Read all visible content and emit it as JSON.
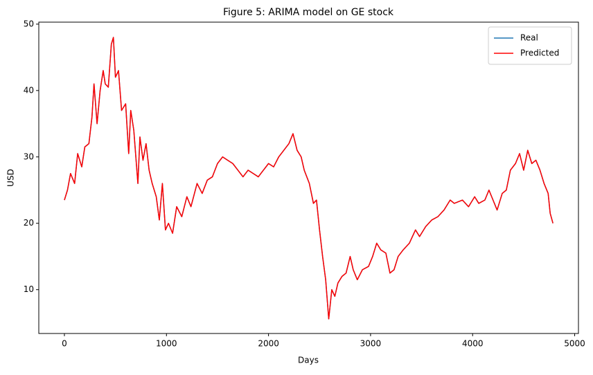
{
  "chart_data": {
    "type": "line",
    "title": "Figure 5: ARIMA model on GE stock",
    "x_label": "Days",
    "y_label": "USD",
    "x": [
      0,
      30,
      60,
      100,
      130,
      170,
      200,
      240,
      270,
      290,
      320,
      350,
      380,
      400,
      430,
      460,
      480,
      500,
      530,
      560,
      600,
      630,
      650,
      680,
      700,
      720,
      740,
      770,
      800,
      830,
      860,
      900,
      930,
      960,
      990,
      1020,
      1060,
      1100,
      1150,
      1200,
      1240,
      1300,
      1350,
      1400,
      1450,
      1500,
      1550,
      1600,
      1650,
      1700,
      1750,
      1800,
      1850,
      1900,
      1950,
      2000,
      2050,
      2100,
      2150,
      2200,
      2240,
      2280,
      2320,
      2350,
      2400,
      2440,
      2470,
      2500,
      2530,
      2560,
      2590,
      2620,
      2650,
      2680,
      2720,
      2760,
      2800,
      2830,
      2870,
      2920,
      2980,
      3020,
      3060,
      3100,
      3150,
      3190,
      3230,
      3270,
      3320,
      3380,
      3440,
      3480,
      3540,
      3600,
      3660,
      3720,
      3780,
      3820,
      3900,
      3960,
      4020,
      4060,
      4120,
      4160,
      4200,
      4240,
      4290,
      4330,
      4370,
      4420,
      4460,
      4500,
      4540,
      4580,
      4620,
      4660,
      4700,
      4740,
      4760,
      4787
    ],
    "series": [
      {
        "name": "Real",
        "color": "#1f77b4",
        "values": [
          23.5,
          25,
          27.5,
          26,
          30.5,
          28.5,
          31.5,
          32,
          36,
          41,
          35,
          40,
          43,
          41,
          40.5,
          47,
          48,
          42,
          43,
          37,
          38,
          30.5,
          37,
          34,
          30,
          26,
          33,
          29.5,
          32,
          28,
          26,
          24,
          20.5,
          26,
          19,
          20,
          18.5,
          22.5,
          21,
          24,
          22.5,
          26,
          24.5,
          26.5,
          27,
          29,
          30,
          29.5,
          29,
          28,
          27,
          28,
          27.5,
          27,
          28,
          29,
          28.5,
          30,
          31,
          32,
          33.5,
          31,
          30,
          28,
          26,
          23,
          23.5,
          19,
          15,
          11.5,
          5.6,
          10,
          9,
          11,
          12,
          12.5,
          15,
          13,
          11.5,
          13,
          13.5,
          15,
          17,
          16,
          15.5,
          12.5,
          13,
          15,
          16,
          17,
          19,
          18,
          19.5,
          20.5,
          21,
          22,
          23.5,
          23,
          23.5,
          22.5,
          24,
          23,
          23.5,
          25,
          23.5,
          22,
          24.5,
          25,
          28,
          29,
          30.5,
          28,
          31,
          29,
          29.5,
          28,
          26,
          24.5,
          21.5,
          20
        ]
      },
      {
        "name": "Predicted",
        "color": "#ff0000",
        "values": [
          23.5,
          25,
          27.5,
          26,
          30.5,
          28.5,
          31.5,
          32,
          36,
          41,
          35,
          40,
          43,
          41,
          40.5,
          47,
          48,
          42,
          43,
          37,
          38,
          30.5,
          37,
          34,
          30,
          26,
          33,
          29.5,
          32,
          28,
          26,
          24,
          20.5,
          26,
          19,
          20,
          18.5,
          22.5,
          21,
          24,
          22.5,
          26,
          24.5,
          26.5,
          27,
          29,
          30,
          29.5,
          29,
          28,
          27,
          28,
          27.5,
          27,
          28,
          29,
          28.5,
          30,
          31,
          32,
          33.5,
          31,
          30,
          28,
          26,
          23,
          23.5,
          19,
          15,
          11.5,
          5.6,
          10,
          9,
          11,
          12,
          12.5,
          15,
          13,
          11.5,
          13,
          13.5,
          15,
          17,
          16,
          15.5,
          12.5,
          13,
          15,
          16,
          17,
          19,
          18,
          19.5,
          20.5,
          21,
          22,
          23.5,
          23,
          23.5,
          22.5,
          24,
          23,
          23.5,
          25,
          23.5,
          22,
          24.5,
          25,
          28,
          29,
          30.5,
          28,
          31,
          29,
          29.5,
          28,
          26,
          24.5,
          21.5,
          20
        ]
      }
    ],
    "xlim": [
      -251,
      5037
    ],
    "ylim": [
      3.4,
      50.3
    ],
    "xticks": [
      0,
      1000,
      2000,
      3000,
      4000,
      5000
    ],
    "yticks": [
      10,
      20,
      30,
      40,
      50
    ],
    "legend": "upper right"
  }
}
